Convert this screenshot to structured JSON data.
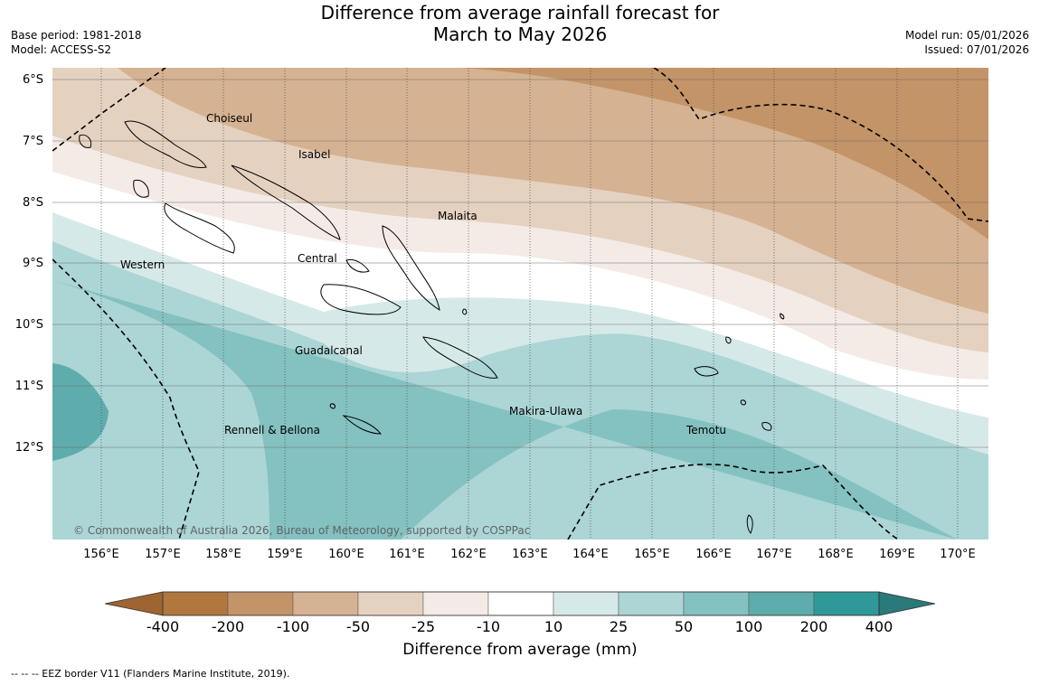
{
  "title_line1": "Difference from average rainfall forecast for",
  "title_line2": "March to May 2026",
  "base_period": "Base period: 1981-2018",
  "model": "Model: ACCESS-S2",
  "model_run": "Model run: 05/01/2026",
  "issued": "Issued: 07/01/2026",
  "lat_labels": [
    "6°S",
    "7°S",
    "8°S",
    "9°S",
    "10°S",
    "11°S",
    "12°S"
  ],
  "lon_labels": [
    "156°E",
    "157°E",
    "158°E",
    "159°E",
    "160°E",
    "161°E",
    "162°E",
    "163°E",
    "164°E",
    "165°E",
    "166°E",
    "167°E",
    "168°E",
    "169°E",
    "170°E"
  ],
  "regions": [
    "Choiseul",
    "Isabel",
    "Malaita",
    "Western",
    "Central",
    "Guadalcanal",
    "Makira-Ulawa",
    "Rennell & Bellona",
    "Temotu"
  ],
  "copyright": "© Commonwealth of Australia 2026, Bureau of Meteorology, supported by COSPPac",
  "colorbar": {
    "ticks": [
      "-400",
      "-200",
      "-100",
      "-50",
      "-25",
      "-10",
      "10",
      "25",
      "50",
      "100",
      "200",
      "400"
    ],
    "colors": [
      "#9e6431",
      "#b0773f",
      "#c39468",
      "#d5b291",
      "#e5d1c0",
      "#f4ebe6",
      "#ffffff",
      "#d6e9e9",
      "#acd5d5",
      "#84c1c1",
      "#5eacac",
      "#2f9999",
      "#2a7a7a"
    ],
    "title": "Difference from average (mm)"
  },
  "footnote": "--  --  -- EEZ border V11 (Flanders Marine Institute, 2019)."
}
